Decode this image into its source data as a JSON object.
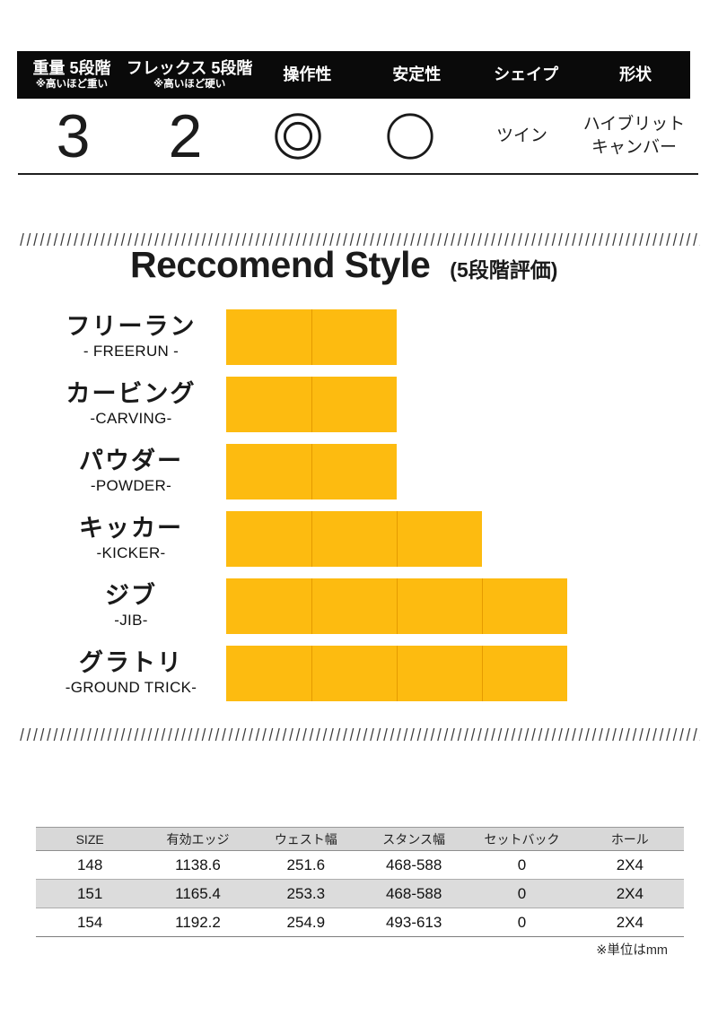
{
  "spec": {
    "columns": [
      {
        "key": "weight",
        "label": "重量 5段階",
        "note": "※高いほど重い",
        "type": "number",
        "value": "3"
      },
      {
        "key": "flex",
        "label": "フレックス 5段階",
        "note": "※高いほど硬い",
        "type": "number",
        "value": "2"
      },
      {
        "key": "operability",
        "label": "操作性",
        "type": "icon",
        "icon": "double-circle-icon"
      },
      {
        "key": "stability",
        "label": "安定性",
        "type": "icon",
        "icon": "circle-icon"
      },
      {
        "key": "shape",
        "label": "シェイプ",
        "type": "text",
        "value": "ツイン"
      },
      {
        "key": "profile",
        "label": "形状",
        "type": "text",
        "value": "ハイブリット\nキャンバー"
      }
    ]
  },
  "recommend": {
    "title": "Reccomend Style",
    "subtitle": "(5段階評価)"
  },
  "chart_data": {
    "type": "bar",
    "orientation": "horizontal",
    "title": "Reccomend Style",
    "subtitle": "(5段階評価)",
    "xlim": [
      0,
      5
    ],
    "categories": [
      "フリーラン",
      "カービング",
      "パウダー",
      "キッカー",
      "ジブ",
      "グラトリ"
    ],
    "category_sublabels": [
      "- FREERUN -",
      "-CARVING-",
      "-POWDER-",
      "-KICKER-",
      "-JIB-",
      "-GROUND TRICK-"
    ],
    "values": [
      2,
      2,
      2,
      3,
      4,
      4
    ],
    "bar_color": "#FDBB10",
    "segment_divider_color": "#E59B00",
    "grid": false,
    "legend": false
  },
  "table": {
    "headers": [
      "SIZE",
      "有効エッジ",
      "ウェスト幅",
      "スタンス幅",
      "セットバック",
      "ホール"
    ],
    "rows": [
      [
        "148",
        "1138.6",
        "251.6",
        "468-588",
        "0",
        "2X4"
      ],
      [
        "151",
        "1165.4",
        "253.3",
        "468-588",
        "0",
        "2X4"
      ],
      [
        "154",
        "1192.2",
        "254.9",
        "493-613",
        "0",
        "2X4"
      ]
    ],
    "footnote": "※単位はmm"
  },
  "colors": {
    "header_bg": "#0a0a0a",
    "header_text": "#ffffff",
    "bar_fill": "#FDBB10",
    "table_header_bg": "#d8d8d8",
    "table_stripe_bg": "#dcdcdc"
  }
}
